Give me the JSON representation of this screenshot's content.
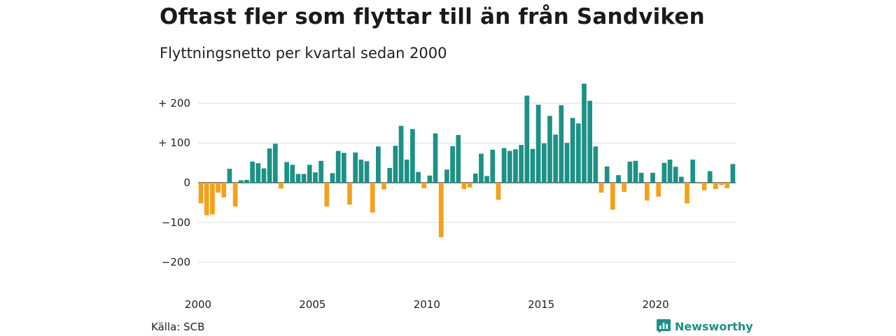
{
  "header": {
    "title": "Oftast fler som flyttar till än från Sandviken",
    "subtitle": "Flyttningsnetto per kvartal sedan 2000"
  },
  "footer": {
    "source": "Källa: SCB",
    "brand": "Newsworthy"
  },
  "colors": {
    "positive": "#1d9185",
    "negative": "#f5a01a",
    "grid": "#dddddd",
    "zero_line": "#333333",
    "brand": "#1d9185"
  },
  "chart_data": {
    "type": "bar",
    "title": "Oftast fler som flyttar till än från Sandviken",
    "subtitle": "Flyttningsnetto per kvartal sedan 2000",
    "xlabel": "",
    "ylabel": "",
    "x_start": "2000 Q1",
    "x_ticks": [
      "2000",
      "2005",
      "2010",
      "2015",
      "2020"
    ],
    "y_ticks": [
      200,
      100,
      0,
      -100,
      -200
    ],
    "y_tick_labels": [
      "+ 200",
      "+ 100",
      "0",
      "−100",
      "−200"
    ],
    "ylim": [
      -250,
      250
    ],
    "grid": true,
    "legend": "none",
    "values": [
      -52,
      -82,
      -80,
      -25,
      -37,
      35,
      -60,
      6,
      7,
      53,
      49,
      36,
      86,
      98,
      -15,
      52,
      45,
      22,
      22,
      45,
      26,
      55,
      -60,
      24,
      80,
      75,
      -55,
      76,
      58,
      54,
      -75,
      91,
      -17,
      37,
      93,
      143,
      58,
      135,
      27,
      -14,
      18,
      124,
      -137,
      33,
      92,
      120,
      -16,
      -12,
      23,
      73,
      17,
      83,
      -43,
      87,
      80,
      84,
      95,
      219,
      85,
      196,
      99,
      168,
      121,
      195,
      100,
      163,
      149,
      249,
      206,
      91,
      -25,
      41,
      -68,
      19,
      -23,
      53,
      55,
      25,
      -45,
      25,
      -35,
      50,
      58,
      40,
      15,
      -52,
      58,
      0,
      -19,
      29,
      -16,
      -6,
      -14,
      47
    ]
  }
}
